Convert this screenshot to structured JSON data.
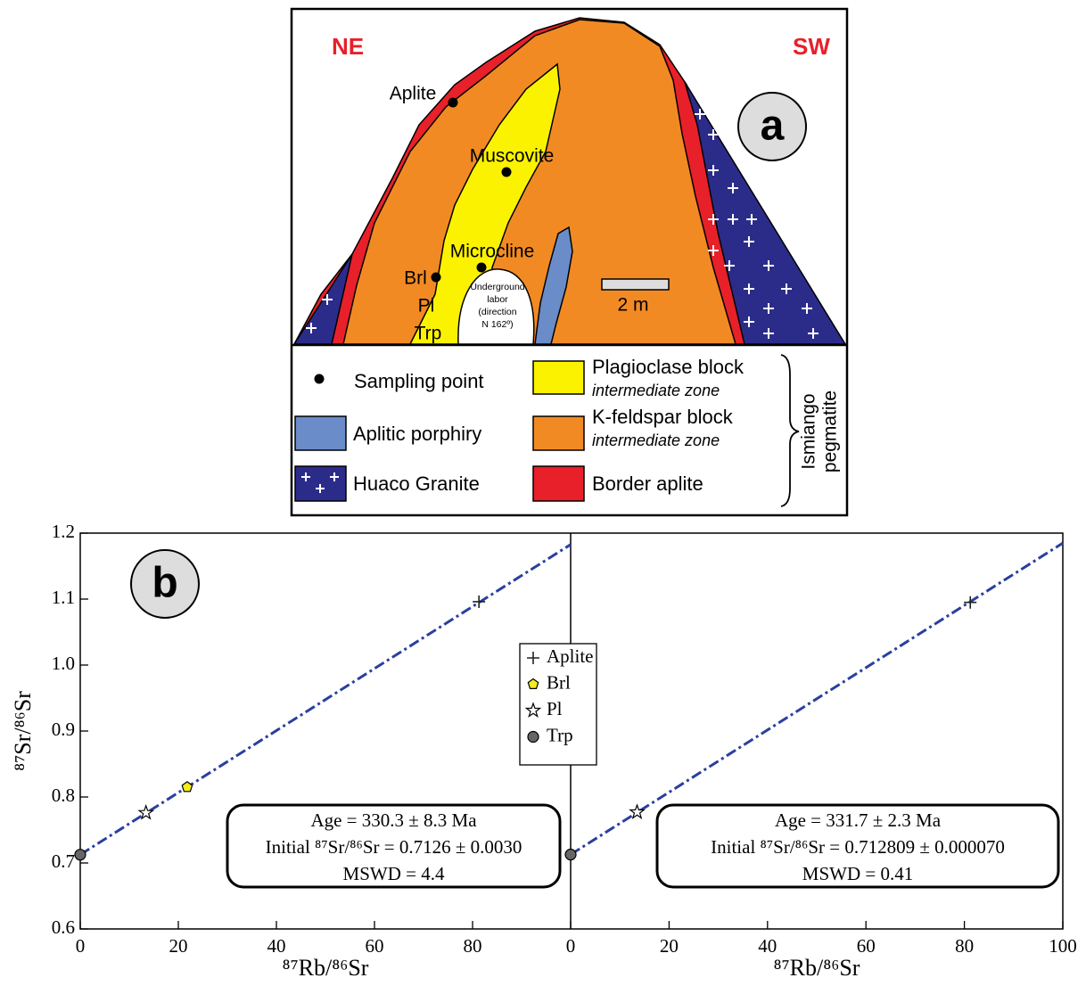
{
  "figure": {
    "panel_b_label": "b"
  },
  "diagram": {
    "orientation": {
      "left": "NE",
      "right": "SW"
    },
    "panel_label": "a",
    "samples": [
      {
        "label": "Aplite"
      },
      {
        "label": "Muscovite"
      },
      {
        "label": "Microcline"
      },
      {
        "label": "Brl"
      }
    ],
    "zone_labels": [
      "Pl",
      "Trp"
    ],
    "underground": [
      "Underground",
      "labor",
      "(direction",
      "N 162º)"
    ],
    "scale": "2 m",
    "legend": {
      "sampling": "Sampling point",
      "porphyry": "Aplitic porphiry",
      "granite": "Huaco Granite",
      "plagioclase": "Plagioclase block",
      "plagioclase_zone": "intermediate zone",
      "kfeldspar": "K-feldspar block",
      "kfeldspar_zone": "intermediate zone",
      "border": "Border aplite",
      "group": [
        "Ismiango",
        "pegmatite"
      ]
    }
  },
  "chart_data": [
    {
      "type": "scatter",
      "x_label": "⁸⁷Rb/⁸⁶Sr",
      "y_label": "⁸⁷Sr/⁸⁶Sr",
      "xlim": [
        0,
        100
      ],
      "ylim": [
        0.6,
        1.2
      ],
      "xticks": [
        0,
        20,
        40,
        60,
        80
      ],
      "yticks": [
        0.6,
        0.7,
        0.8,
        0.9,
        {
          "value": 1,
          "label": "1.0"
        },
        1.1,
        1.2
      ],
      "legend": "center",
      "series": [
        {
          "name": "Aplite",
          "marker": "plus",
          "color": "#222222",
          "x": [
            81.3
          ],
          "values": [
            1.096
          ]
        },
        {
          "name": "Brl",
          "marker": "pentagon",
          "color": "#f5ec1e",
          "x": [
            21.8
          ],
          "values": [
            0.815
          ]
        },
        {
          "name": "Pl",
          "marker": "star",
          "color": "#ffffff",
          "x": [
            13.4
          ],
          "values": [
            0.776
          ]
        },
        {
          "name": "Trp",
          "marker": "circle",
          "color": "#666666",
          "x": [
            0
          ],
          "values": [
            0.7126
          ]
        }
      ],
      "fit": {
        "color": "#2a3fa0",
        "x": [
          0,
          100
        ],
        "values": [
          0.7126,
          1.1827
        ]
      },
      "annotation": [
        "Age = 330.3 ± 8.3 Ma",
        "Initial ⁸⁷Sr/⁸⁶Sr = 0.7126 ± 0.0030",
        "MSWD = 4.4"
      ]
    },
    {
      "type": "scatter",
      "x_label": "⁸⁷Rb/⁸⁶Sr",
      "xlim": [
        0,
        100
      ],
      "ylim": [
        0.6,
        1.2
      ],
      "xticks": [
        0,
        20,
        40,
        60,
        80,
        100
      ],
      "series": [
        {
          "marker": "plus",
          "color": "#222222",
          "x": [
            81.2
          ],
          "values": [
            1.095
          ]
        },
        {
          "marker": "star",
          "color": "#ffffff",
          "x": [
            13.5
          ],
          "values": [
            0.777
          ]
        },
        {
          "marker": "circle",
          "color": "#666666",
          "x": [
            0
          ],
          "values": [
            0.7128
          ]
        }
      ],
      "fit": {
        "color": "#2a3fa0",
        "x": [
          0,
          100
        ],
        "values": [
          0.7128,
          1.1849
        ]
      },
      "annotation": [
        "Age = 331.7 ± 2.3 Ma",
        "Initial ⁸⁷Sr/⁸⁶Sr = 0.712809 ± 0.000070",
        "MSWD = 0.41"
      ]
    }
  ]
}
